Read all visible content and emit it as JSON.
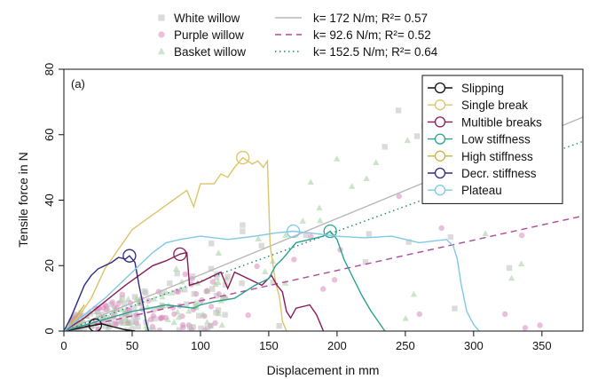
{
  "chart_data": {
    "type": "scatter",
    "panel_label": "(a)",
    "xlabel": "Displacement in mm",
    "ylabel": "Tensile force in N",
    "xlim": [
      0,
      380
    ],
    "ylim": [
      0,
      80
    ],
    "xticks": [
      0,
      50,
      100,
      150,
      200,
      250,
      300,
      350
    ],
    "yticks": [
      0,
      20,
      40,
      60,
      80
    ],
    "grid": false,
    "top_legend": {
      "placement": "top",
      "species": [
        {
          "name": "White willow",
          "color": "#bdbdbd",
          "marker": "square"
        },
        {
          "name": "Purple willow",
          "color": "#d98bbd",
          "marker": "circle"
        },
        {
          "name": "Basket willow",
          "color": "#9fcf9a",
          "marker": "triangle"
        }
      ],
      "fits": [
        {
          "name": "k= 172 N/m; R²= 0.57",
          "color": "#b8b8b8",
          "dash": "solid",
          "slope": 0.172
        },
        {
          "name": "k= 92.6 N/m; R²= 0.52",
          "color": "#b04a9a",
          "dash": "dashed",
          "slope": 0.0926
        },
        {
          "name": "k= 152.5 N/m; R²= 0.64",
          "color": "#1a8870",
          "dash": "dotted",
          "slope": 0.1525
        }
      ]
    },
    "legend_placement": "top-right",
    "curves": [
      {
        "name": "Slipping",
        "color": "#111111",
        "marker": [
          23,
          1.8
        ],
        "points": [
          [
            0,
            0
          ],
          [
            8,
            0.6
          ],
          [
            15,
            1.2
          ],
          [
            22,
            1.8
          ],
          [
            28,
            2.2
          ],
          [
            35,
            1.4
          ],
          [
            45,
            0.4
          ],
          [
            52,
            0
          ]
        ]
      },
      {
        "name": "Single break",
        "color": "#dcc46a",
        "marker": [
          131,
          53
        ],
        "points": [
          [
            0,
            0
          ],
          [
            10,
            4
          ],
          [
            20,
            10
          ],
          [
            30,
            19
          ],
          [
            40,
            25
          ],
          [
            50,
            31
          ],
          [
            60,
            34
          ],
          [
            70,
            37
          ],
          [
            80,
            40
          ],
          [
            90,
            43
          ],
          [
            95,
            38
          ],
          [
            100,
            45
          ],
          [
            110,
            45
          ],
          [
            115,
            48
          ],
          [
            120,
            47
          ],
          [
            125,
            50
          ],
          [
            131,
            53
          ],
          [
            138,
            51
          ],
          [
            142,
            52
          ],
          [
            146,
            50
          ],
          [
            149,
            52
          ],
          [
            151,
            26
          ],
          [
            155,
            15
          ],
          [
            158,
            10
          ],
          [
            160,
            3
          ],
          [
            163,
            0
          ]
        ]
      },
      {
        "name": "Multible breaks",
        "color": "#8b1a55",
        "marker": [
          85,
          23.5
        ],
        "points": [
          [
            0,
            0
          ],
          [
            15,
            4
          ],
          [
            30,
            9
          ],
          [
            45,
            14
          ],
          [
            55,
            17
          ],
          [
            65,
            20
          ],
          [
            75,
            21.5
          ],
          [
            85,
            23.5
          ],
          [
            90,
            24
          ],
          [
            92,
            14
          ],
          [
            100,
            15
          ],
          [
            110,
            17
          ],
          [
            115,
            18
          ],
          [
            120,
            13
          ],
          [
            125,
            18
          ],
          [
            135,
            16
          ],
          [
            145,
            14
          ],
          [
            152,
            17
          ],
          [
            156,
            14
          ],
          [
            160,
            12
          ],
          [
            163,
            6
          ],
          [
            166,
            4
          ],
          [
            170,
            7
          ],
          [
            180,
            8
          ],
          [
            185,
            5
          ],
          [
            190,
            0
          ]
        ]
      },
      {
        "name": "Low stiffness",
        "color": "#2aa38c",
        "marker": [
          195,
          30.5
        ],
        "points": [
          [
            0,
            0
          ],
          [
            25,
            3
          ],
          [
            50,
            6
          ],
          [
            75,
            8
          ],
          [
            95,
            7
          ],
          [
            100,
            8
          ],
          [
            110,
            9
          ],
          [
            125,
            10
          ],
          [
            140,
            14
          ],
          [
            150,
            16
          ],
          [
            155,
            20
          ],
          [
            160,
            22
          ],
          [
            170,
            27
          ],
          [
            180,
            28
          ],
          [
            190,
            29
          ],
          [
            195,
            30.5
          ],
          [
            200,
            28
          ],
          [
            205,
            22
          ],
          [
            212,
            16
          ],
          [
            218,
            11
          ],
          [
            225,
            6
          ],
          [
            230,
            3
          ],
          [
            235,
            0
          ]
        ]
      },
      {
        "name": "High stiffness",
        "color": "#c9b23f",
        "marker": null,
        "points": [
          [
            0,
            0
          ],
          [
            5,
            2
          ],
          [
            10,
            5
          ],
          [
            15,
            8
          ]
        ]
      },
      {
        "name": "Decr. stiffness",
        "color": "#2d2a80",
        "marker": [
          48,
          23
        ],
        "points": [
          [
            0,
            0
          ],
          [
            5,
            4
          ],
          [
            10,
            9
          ],
          [
            15,
            14
          ],
          [
            20,
            17
          ],
          [
            25,
            19
          ],
          [
            30,
            20
          ],
          [
            35,
            21
          ],
          [
            40,
            22.5
          ],
          [
            45,
            22
          ],
          [
            48,
            23
          ],
          [
            52,
            21
          ],
          [
            55,
            14
          ],
          [
            58,
            8
          ],
          [
            60,
            3
          ],
          [
            62,
            0
          ]
        ]
      },
      {
        "name": "Plateau",
        "color": "#7fc8e6",
        "marker": [
          168,
          30.5
        ],
        "points": [
          [
            0,
            0
          ],
          [
            15,
            5
          ],
          [
            30,
            10
          ],
          [
            45,
            16
          ],
          [
            55,
            20
          ],
          [
            65,
            24
          ],
          [
            75,
            27
          ],
          [
            85,
            28
          ],
          [
            100,
            29
          ],
          [
            120,
            28
          ],
          [
            140,
            29
          ],
          [
            155,
            30
          ],
          [
            168,
            30.5
          ],
          [
            180,
            30
          ],
          [
            200,
            29
          ],
          [
            220,
            28.5
          ],
          [
            240,
            29
          ],
          [
            260,
            27
          ],
          [
            280,
            28
          ],
          [
            285,
            26
          ],
          [
            288,
            22
          ],
          [
            291,
            14
          ],
          [
            295,
            6
          ],
          [
            300,
            2
          ],
          [
            304,
            0
          ]
        ]
      }
    ]
  }
}
